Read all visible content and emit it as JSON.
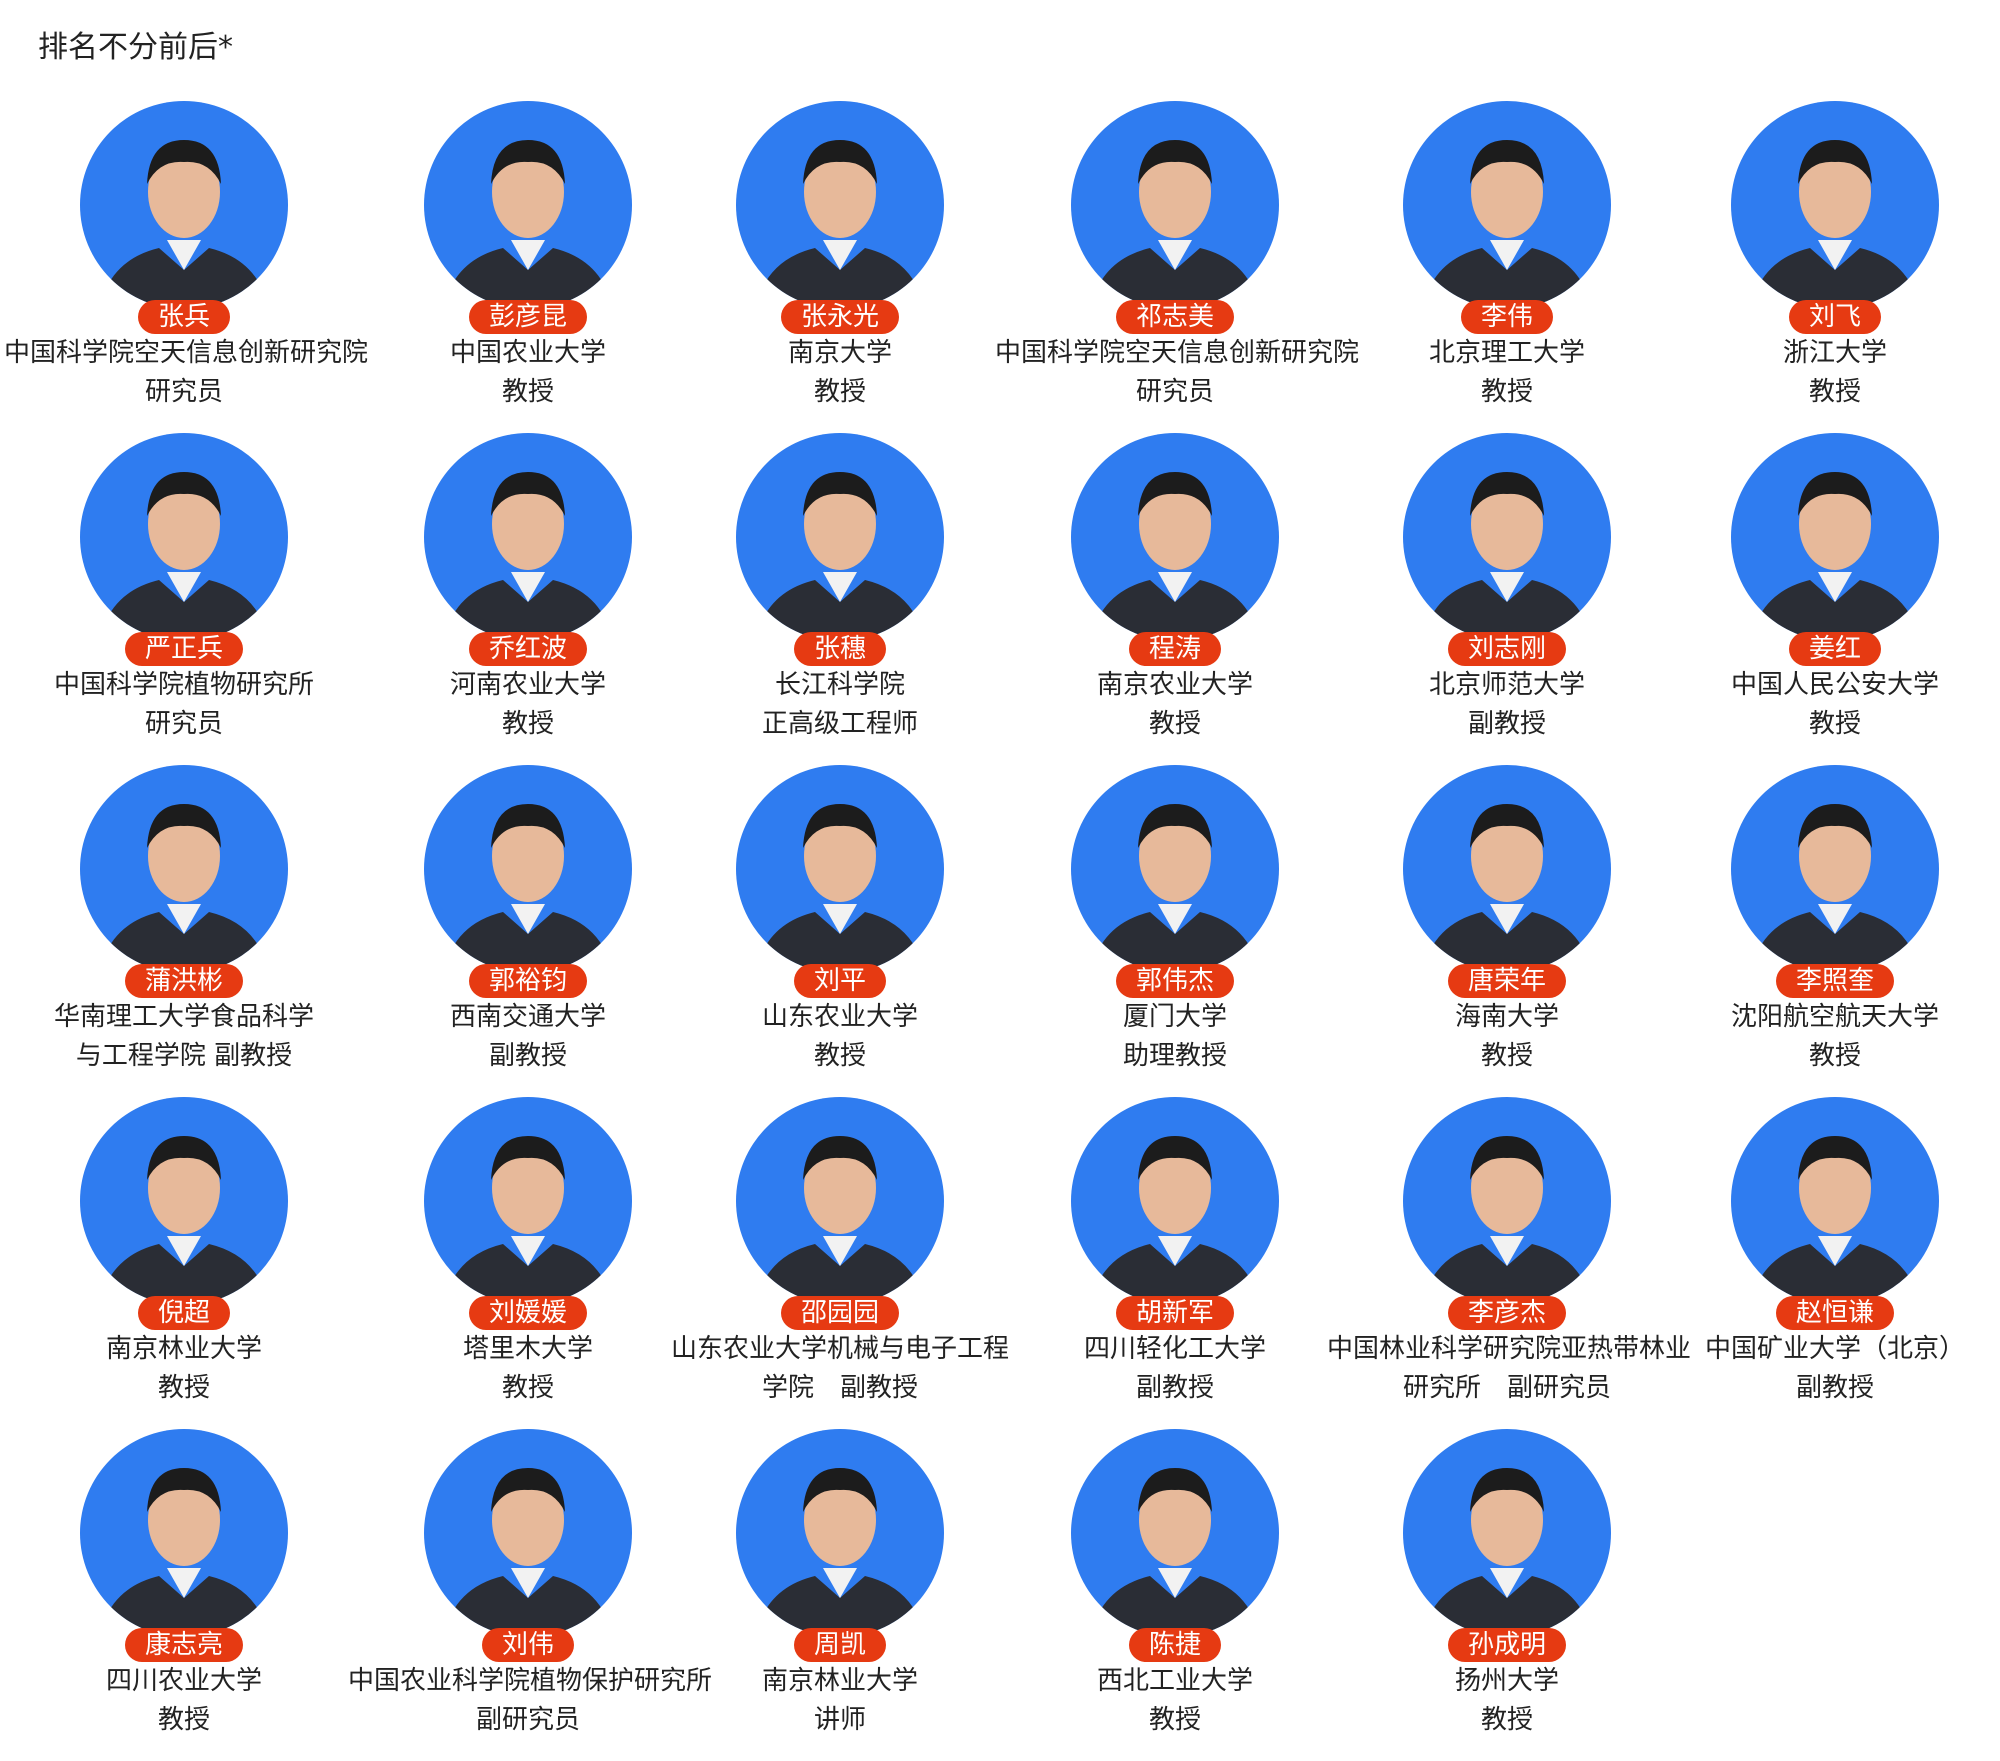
{
  "header": {
    "title": "排名不分前后*"
  },
  "people": [
    {
      "name": "张兵",
      "lines": [
        "中国科学院空天信息创新研究院",
        "研究员"
      ]
    },
    {
      "name": "彭彦昆",
      "lines": [
        "中国农业大学",
        "教授"
      ]
    },
    {
      "name": "张永光",
      "lines": [
        "南京大学",
        "教授"
      ]
    },
    {
      "name": "祁志美",
      "lines": [
        "中国科学院空天信息创新研究院",
        "研究员"
      ]
    },
    {
      "name": "李伟",
      "lines": [
        "北京理工大学",
        "教授"
      ]
    },
    {
      "name": "刘飞",
      "lines": [
        "浙江大学",
        "教授"
      ]
    },
    {
      "name": "严正兵",
      "lines": [
        "中国科学院植物研究所",
        "研究员"
      ]
    },
    {
      "name": "乔红波",
      "lines": [
        "河南农业大学",
        "教授"
      ]
    },
    {
      "name": "张穗",
      "lines": [
        "长江科学院",
        "正高级工程师"
      ]
    },
    {
      "name": "程涛",
      "lines": [
        "南京农业大学",
        "教授"
      ]
    },
    {
      "name": "刘志刚",
      "lines": [
        "北京师范大学",
        "副教授"
      ]
    },
    {
      "name": "姜红",
      "lines": [
        "中国人民公安大学",
        "教授"
      ]
    },
    {
      "name": "蒲洪彬",
      "lines": [
        "华南理工大学食品科学",
        "与工程学院 副教授"
      ]
    },
    {
      "name": "郭裕钧",
      "lines": [
        "西南交通大学",
        "副教授"
      ]
    },
    {
      "name": "刘平",
      "lines": [
        "山东农业大学",
        "教授"
      ]
    },
    {
      "name": "郭伟杰",
      "lines": [
        "厦门大学",
        "助理教授"
      ]
    },
    {
      "name": "唐荣年",
      "lines": [
        "海南大学",
        "教授"
      ]
    },
    {
      "name": "李照奎",
      "lines": [
        "沈阳航空航天大学",
        "教授"
      ]
    },
    {
      "name": "倪超",
      "lines": [
        "南京林业大学",
        "教授"
      ]
    },
    {
      "name": "刘媛媛",
      "lines": [
        "塔里木大学",
        "教授"
      ]
    },
    {
      "name": "邵园园",
      "lines": [
        "山东农业大学机械与电子工程",
        "学院　副教授"
      ]
    },
    {
      "name": "胡新军",
      "lines": [
        "四川轻化工大学",
        "副教授"
      ]
    },
    {
      "name": "李彦杰",
      "lines": [
        "中国林业科学研究院亚热带林业",
        "研究所　副研究员"
      ]
    },
    {
      "name": "赵恒谦",
      "lines": [
        "中国矿业大学（北京）",
        "副教授"
      ]
    },
    {
      "name": "康志亮",
      "lines": [
        "四川农业大学",
        "教授"
      ]
    },
    {
      "name": "刘伟",
      "lines": [
        "中国农业科学院植物保护研究所",
        "副研究员"
      ]
    },
    {
      "name": "周凯",
      "lines": [
        "南京林业大学",
        "讲师"
      ]
    },
    {
      "name": "陈捷",
      "lines": [
        "西北工业大学",
        "教授"
      ]
    },
    {
      "name": "孙成明",
      "lines": [
        "扬州大学",
        "教授"
      ]
    }
  ]
}
